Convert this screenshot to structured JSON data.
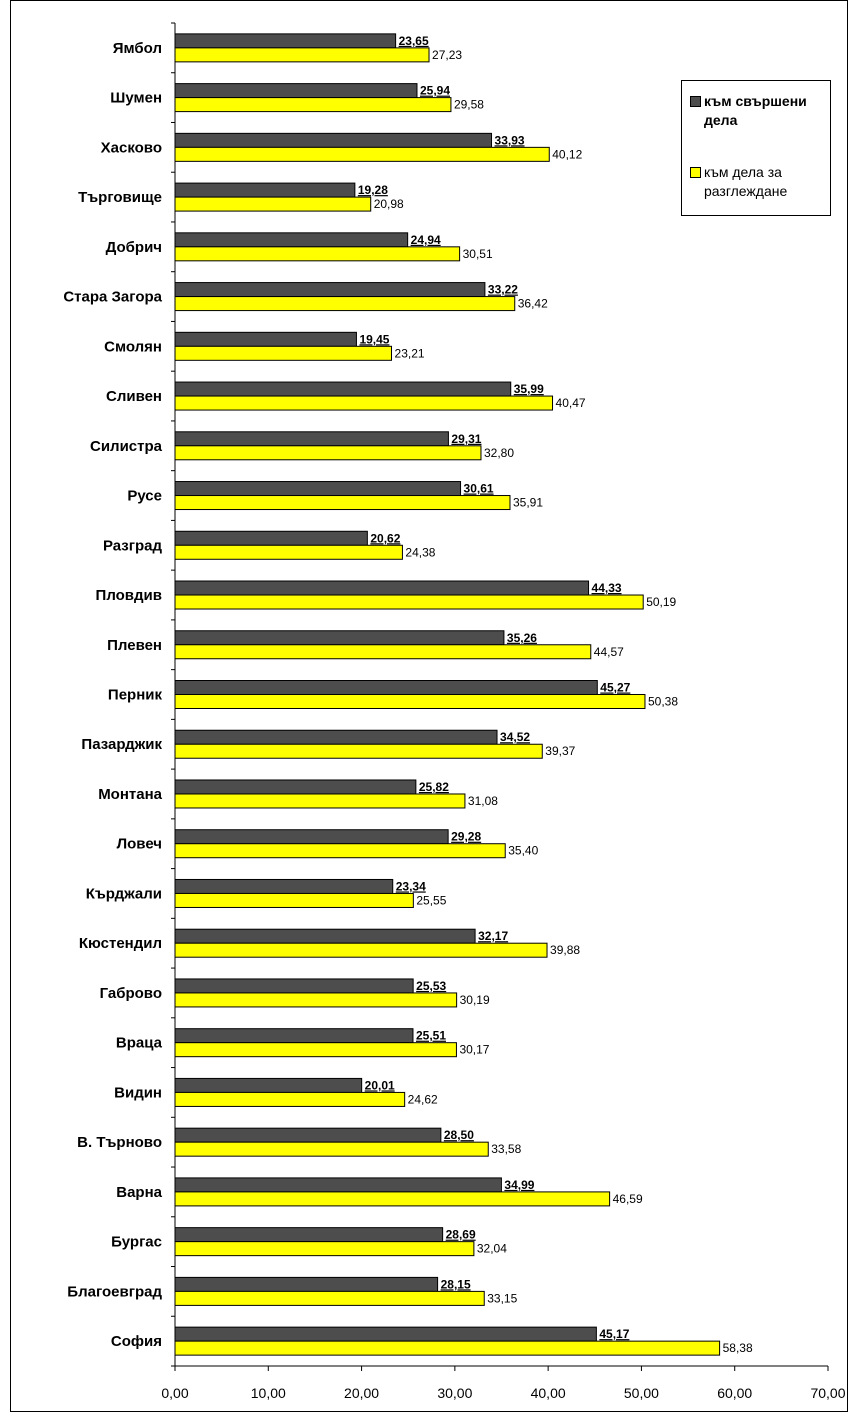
{
  "chart_data": {
    "type": "bar",
    "orientation": "horizontal",
    "categories": [
      "Ямбол",
      "Шумен",
      "Хасково",
      "Търговище",
      "Добрич",
      "Стара Загора",
      "Смолян",
      "Сливен",
      "Силистра",
      "Русе",
      "Разград",
      "Пловдив",
      "Плевен",
      "Перник",
      "Пазарджик",
      "Монтана",
      "Ловеч",
      "Кърджали",
      "Кюстендил",
      "Габрово",
      "Враца",
      "Видин",
      "В. Търново",
      "Варна",
      "Бургас",
      "Благоевград",
      "София"
    ],
    "series": [
      {
        "name": "към свършени дела",
        "color": "#4d4d4d",
        "values": [
          23.65,
          25.94,
          33.93,
          19.28,
          24.94,
          33.22,
          19.45,
          35.99,
          29.31,
          30.61,
          20.62,
          44.33,
          35.26,
          45.27,
          34.52,
          25.82,
          29.28,
          23.34,
          32.17,
          25.53,
          25.51,
          20.01,
          28.5,
          34.99,
          28.69,
          28.15,
          45.17
        ],
        "labels": [
          "23,65",
          "25,94",
          "33,93",
          "19,28",
          "24,94",
          "33,22",
          "19,45",
          "35,99",
          "29,31",
          "30,61",
          "20,62",
          "44,33",
          "35,26",
          "45,27",
          "34,52",
          "25,82",
          "29,28",
          "23,34",
          "32,17",
          "25,53",
          "25,51",
          "20,01",
          "28,50",
          "34,99",
          "28,69",
          "28,15",
          "45,17"
        ]
      },
      {
        "name": "към дела за разглеждане",
        "color": "#ffff00",
        "values": [
          27.23,
          29.58,
          40.12,
          20.98,
          30.51,
          36.42,
          23.21,
          40.47,
          32.8,
          35.91,
          24.38,
          50.19,
          44.57,
          50.38,
          39.37,
          31.08,
          35.4,
          25.55,
          39.88,
          30.19,
          30.17,
          24.62,
          33.58,
          46.59,
          32.04,
          33.15,
          58.38
        ],
        "labels": [
          "27,23",
          "29,58",
          "40,12",
          "20,98",
          "30,51",
          "36,42",
          "23,21",
          "40,47",
          "32,80",
          "35,91",
          "24,38",
          "50,19",
          "44,57",
          "50,38",
          "39,37",
          "31,08",
          "35,40",
          "25,55",
          "39,88",
          "30,19",
          "30,17",
          "24,62",
          "33,58",
          "46,59",
          "32,04",
          "33,15",
          "58,38"
        ]
      }
    ],
    "xlim": [
      0,
      70
    ],
    "ticks": [
      "0,00",
      "10,00",
      "20,00",
      "30,00",
      "40,00",
      "50,00",
      "60,00",
      "70,00"
    ],
    "title": "",
    "xlabel": "",
    "ylabel": "",
    "grid": false,
    "legend_placement": "top-right"
  }
}
